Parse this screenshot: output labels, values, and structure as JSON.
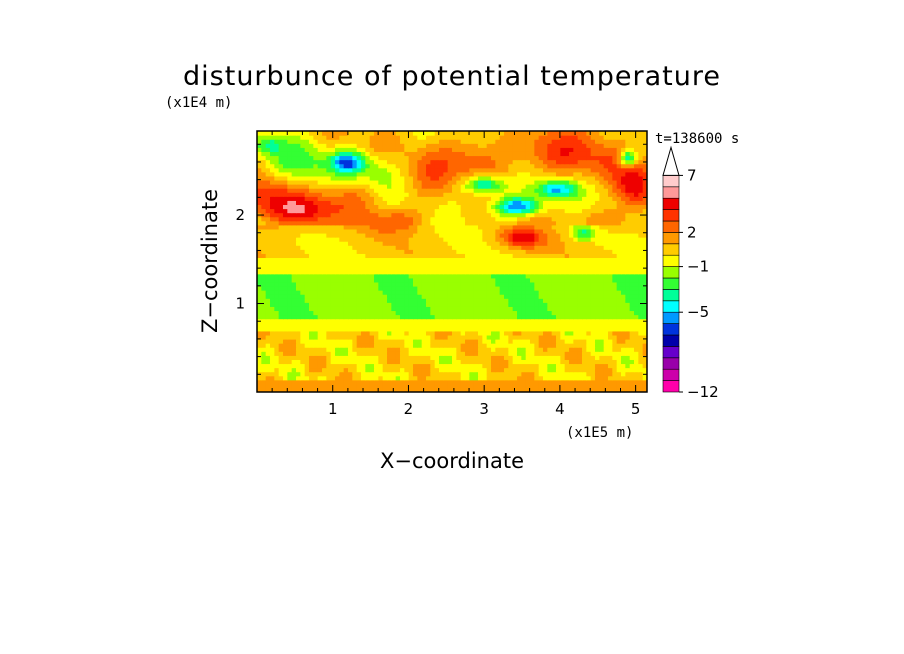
{
  "chart_data": {
    "type": "heatmap",
    "title": "disturbunce of potential temperature",
    "xlabel": "X−coordinate",
    "ylabel": "Z−coordinate",
    "x_unit": "(x1E5 m)",
    "y_unit": "(x1E4 m)",
    "time_label": "t=138600 s",
    "xlim": [
      0,
      5.15
    ],
    "ylim": [
      0,
      2.95
    ],
    "x_ticks": [
      1,
      2,
      3,
      4,
      5
    ],
    "y_ticks": [
      1,
      2
    ],
    "x_tick_labels": [
      "1",
      "2",
      "3",
      "4",
      "5"
    ],
    "y_tick_labels": [
      "1",
      "2"
    ],
    "colorbar": {
      "levels": [
        -12,
        -11,
        -10,
        -9,
        -8,
        -7,
        -6,
        -5,
        -4,
        -3,
        -2,
        -1,
        0,
        1,
        2,
        3,
        4,
        5,
        6,
        7,
        8,
        9,
        10
      ],
      "labeled_levels": [
        7,
        2,
        -1,
        -5,
        -12
      ],
      "labels": [
        "7",
        "2",
        "−1",
        "−5",
        "−12"
      ],
      "colors": [
        "#ff00aa",
        "#cc00aa",
        "#9900aa",
        "#6600cc",
        "#0000aa",
        "#0033dd",
        "#0099ff",
        "#00ffff",
        "#00ff99",
        "#33ff33",
        "#99ff00",
        "#ffff00",
        "#ffcc00",
        "#ff9900",
        "#ff6600",
        "#ff3300",
        "#ee0000",
        "#ff9999",
        "#ffcccc"
      ],
      "extend": "max"
    }
  }
}
